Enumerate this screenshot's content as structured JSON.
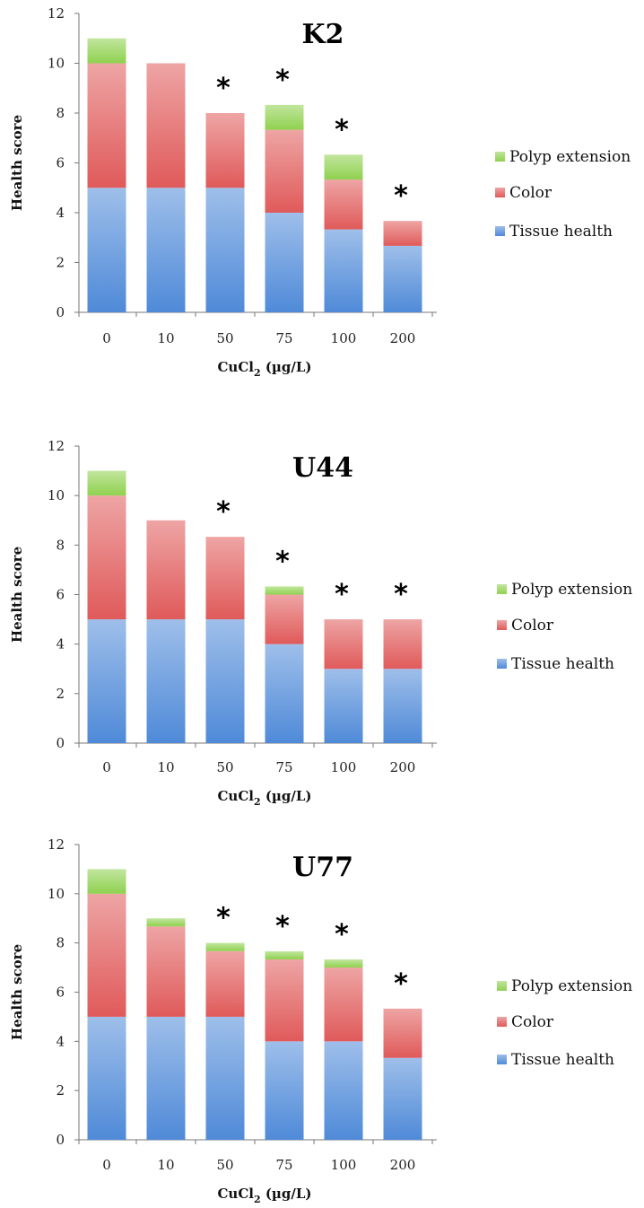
{
  "chart_data": [
    {
      "type": "bar",
      "stacked": true,
      "title": "K2",
      "xlabel": "CuCl2 (µg/L)",
      "ylabel": "Health score",
      "categories": [
        "0",
        "10",
        "50",
        "75",
        "100",
        "200"
      ],
      "ylim": [
        0,
        12
      ],
      "yticks": [
        "0",
        "2",
        "4",
        "6",
        "8",
        "10",
        "12"
      ],
      "series": [
        {
          "name": "Tissue health",
          "color": "#4f8ad8",
          "values": [
            5,
            5,
            5,
            4,
            3.33,
            2.67
          ]
        },
        {
          "name": "Color",
          "color": "#e05a5a",
          "values": [
            5,
            5,
            3,
            3.33,
            2,
            1
          ]
        },
        {
          "name": "Polyp extension",
          "color": "#8fd14f",
          "values": [
            1,
            0,
            0,
            1,
            1,
            0
          ]
        }
      ],
      "significance": [
        "",
        "",
        "*",
        "*",
        "*",
        "*"
      ],
      "legend_position": "right",
      "grid": false
    },
    {
      "type": "bar",
      "stacked": true,
      "title": "U44",
      "xlabel": "CuCl2 (µg/L)",
      "ylabel": "Health score",
      "categories": [
        "0",
        "10",
        "50",
        "75",
        "100",
        "200"
      ],
      "ylim": [
        0,
        12
      ],
      "yticks": [
        "0",
        "2",
        "4",
        "6",
        "8",
        "10",
        "12"
      ],
      "series": [
        {
          "name": "Tissue health",
          "color": "#4f8ad8",
          "values": [
            5,
            5,
            5,
            4,
            3,
            3
          ]
        },
        {
          "name": "Color",
          "color": "#e05a5a",
          "values": [
            5,
            4,
            3.33,
            2,
            2,
            2
          ]
        },
        {
          "name": "Polyp extension",
          "color": "#8fd14f",
          "values": [
            1,
            0,
            0,
            0.33,
            0,
            0
          ]
        }
      ],
      "significance": [
        "",
        "",
        "*",
        "*",
        "*",
        "*"
      ],
      "legend_position": "right",
      "grid": false
    },
    {
      "type": "bar",
      "stacked": true,
      "title": "U77",
      "xlabel": "CuCl2 (µg/L)",
      "ylabel": "Health score",
      "categories": [
        "0",
        "10",
        "50",
        "75",
        "100",
        "200"
      ],
      "ylim": [
        0,
        12
      ],
      "yticks": [
        "0",
        "2",
        "4",
        "6",
        "8",
        "10",
        "12"
      ],
      "series": [
        {
          "name": "Tissue health",
          "color": "#4f8ad8",
          "values": [
            5,
            5,
            5,
            4,
            4,
            3.33
          ]
        },
        {
          "name": "Color",
          "color": "#e05a5a",
          "values": [
            5,
            3.67,
            2.67,
            3.33,
            3,
            2
          ]
        },
        {
          "name": "Polyp extension",
          "color": "#8fd14f",
          "values": [
            1,
            0.33,
            0.33,
            0.33,
            0.33,
            0
          ]
        }
      ],
      "significance": [
        "",
        "",
        "*",
        "*",
        "*",
        "*"
      ],
      "legend_position": "right",
      "grid": false
    }
  ]
}
